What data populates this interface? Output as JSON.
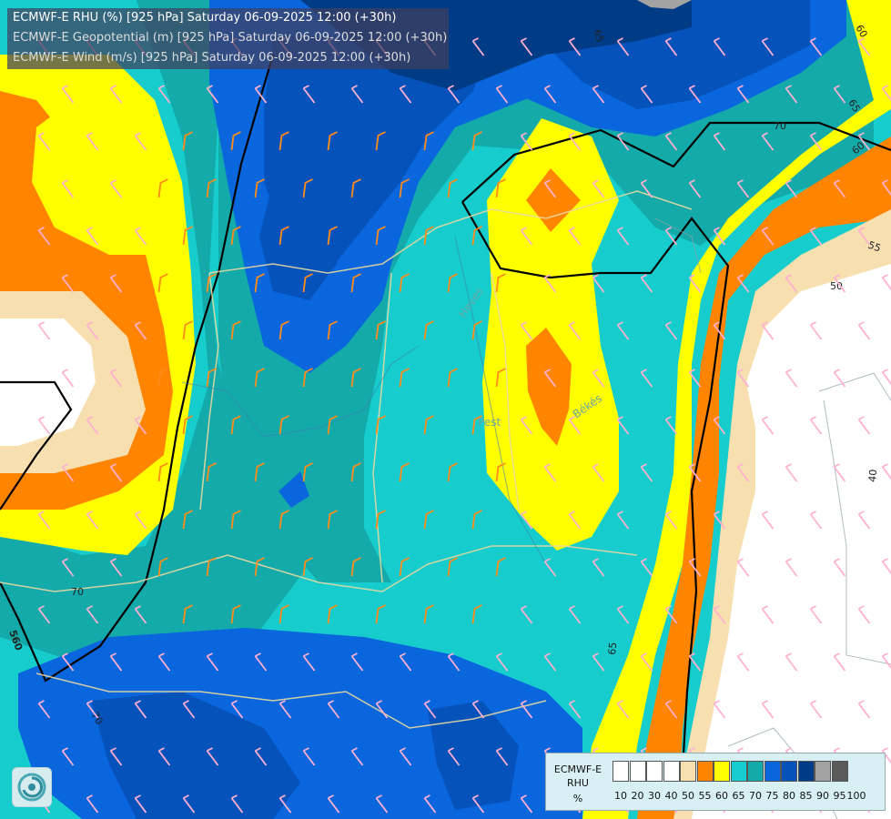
{
  "titles": [
    "ECMWF-E RHU (%) [925 hPa] Saturday 06-09-2025 12:00 (+30h)",
    "ECMWF-E Geopotential (m) [925 hPa] Saturday 06-09-2025 12:00 (+30h)",
    "ECMWF-E Wind (m/s) [925 hPa] Saturday 06-09-2025 12:00 (+30h)"
  ],
  "legend": {
    "title_lines": [
      "ECMWF-E",
      "RHU",
      "%"
    ],
    "ticks": [
      "10",
      "20",
      "30",
      "40",
      "50",
      "55",
      "60",
      "65",
      "70",
      "75",
      "80",
      "85",
      "90",
      "95",
      "100"
    ],
    "colors": [
      "#ffffff",
      "#ffffff",
      "#ffffff",
      "#ffffff",
      "#f7dfb0",
      "#ff8400",
      "#ffff00",
      "#18cdd0",
      "#14aaaa",
      "#0a66dd",
      "#0552bb",
      "#003c86",
      "#a3a3a3",
      "#5a5a5a"
    ]
  },
  "contour_labels": [
    "65",
    "60",
    "65",
    "70",
    "60",
    "55",
    "50",
    "40",
    "70",
    "65",
    "560",
    "70"
  ],
  "map_labels": [
    "Heves",
    "Pest",
    "Békés"
  ],
  "colors": {
    "rh_50": "#f7dfb0",
    "rh_55": "#ff8400",
    "rh_60": "#ffff00",
    "rh_65": "#18cdd0",
    "rh_70": "#14aaaa",
    "rh_75": "#0a66dd",
    "rh_80": "#0552bb",
    "rh_85": "#003c86",
    "rh_90": "#a3a3a3",
    "wind_barb_low": "#ff8c1a",
    "wind_barb_high": "#ffb0d0",
    "geopotential_line": "#000000"
  }
}
